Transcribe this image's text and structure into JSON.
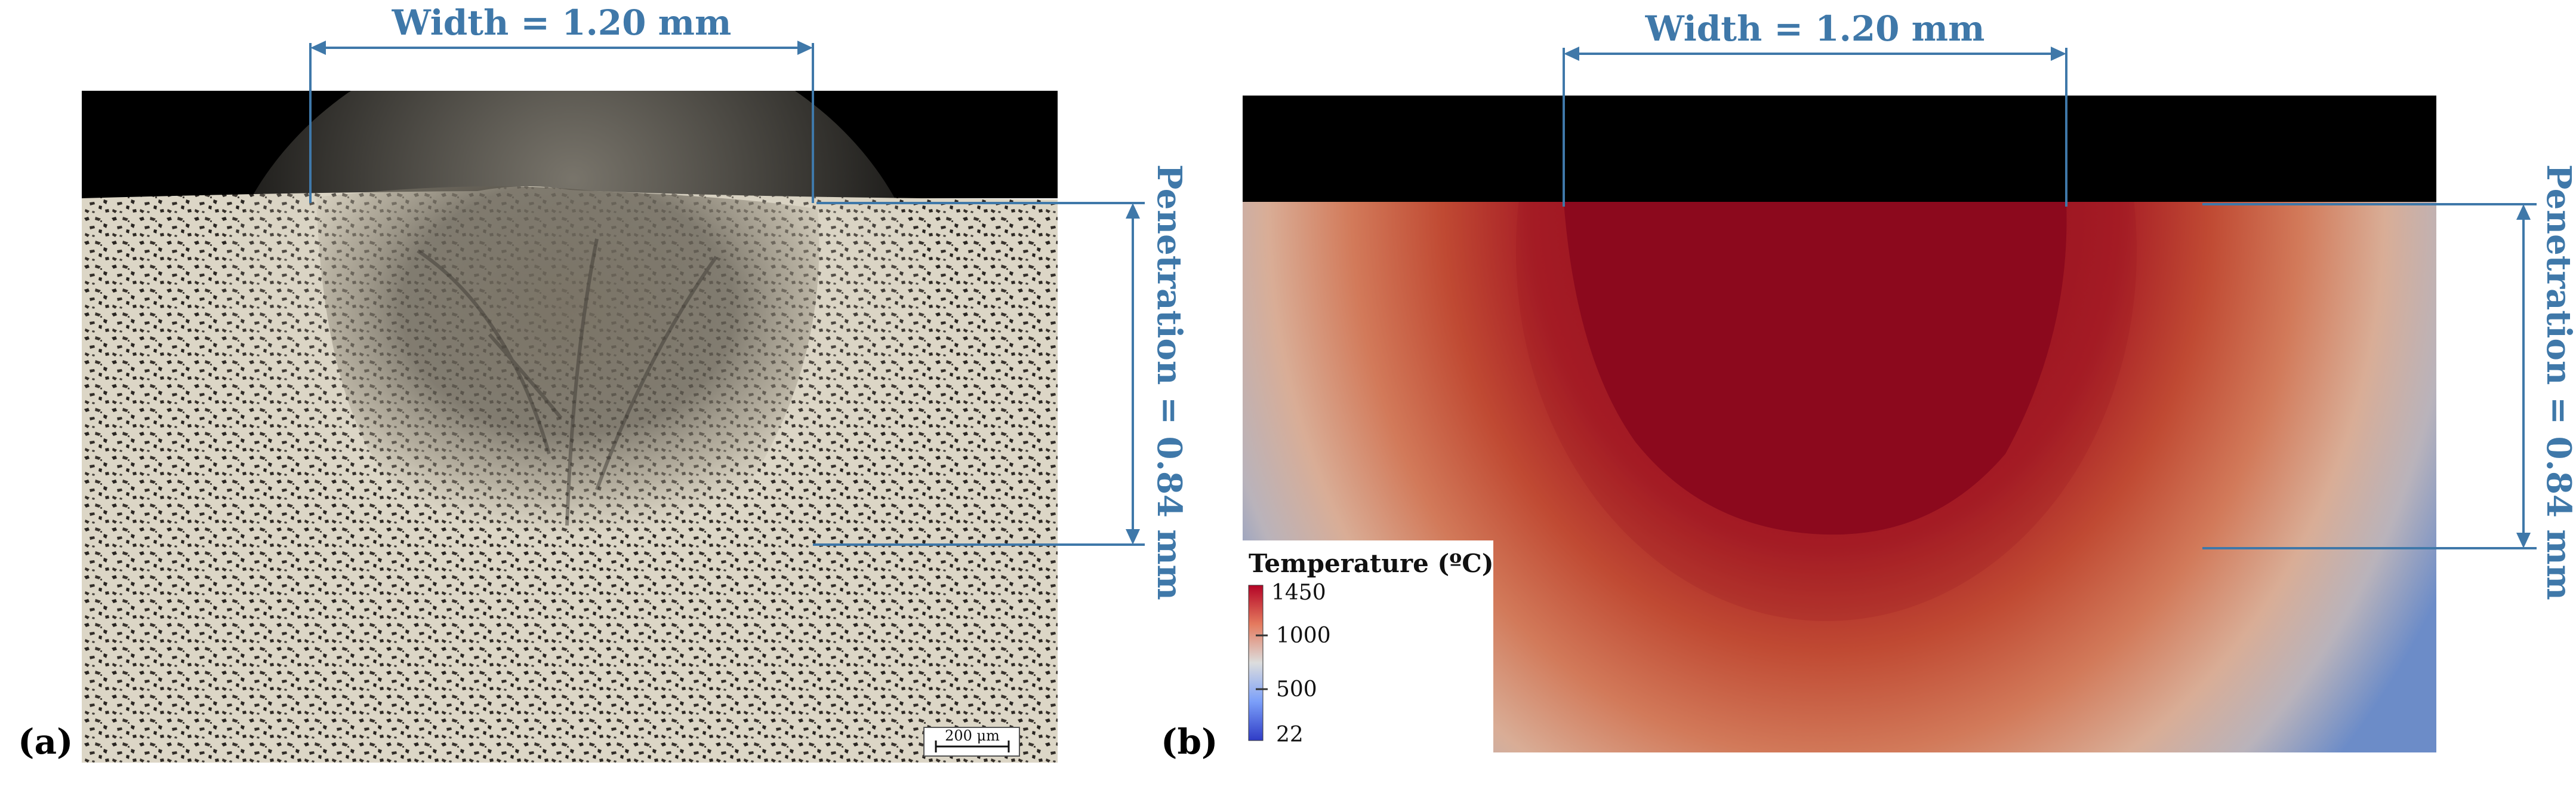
{
  "panel_a": {
    "label": "(a)",
    "width_label": "Width = 1.20 mm",
    "penetration_label": "Penetration = 0.84 mm",
    "scale_bar_label": "200 μm"
  },
  "panel_b": {
    "label": "(b)",
    "width_label": "Width = 1.20 mm",
    "penetration_label": "Penetration = 0.84 mm",
    "legend": {
      "title": "Temperature (ºC)",
      "ticks": [
        "1450",
        "1000",
        "500",
        "22"
      ]
    }
  },
  "colors": {
    "dimension_lines": "#3f78a9",
    "hot": "#8c0a1e",
    "cold": "#5b7fc0"
  }
}
